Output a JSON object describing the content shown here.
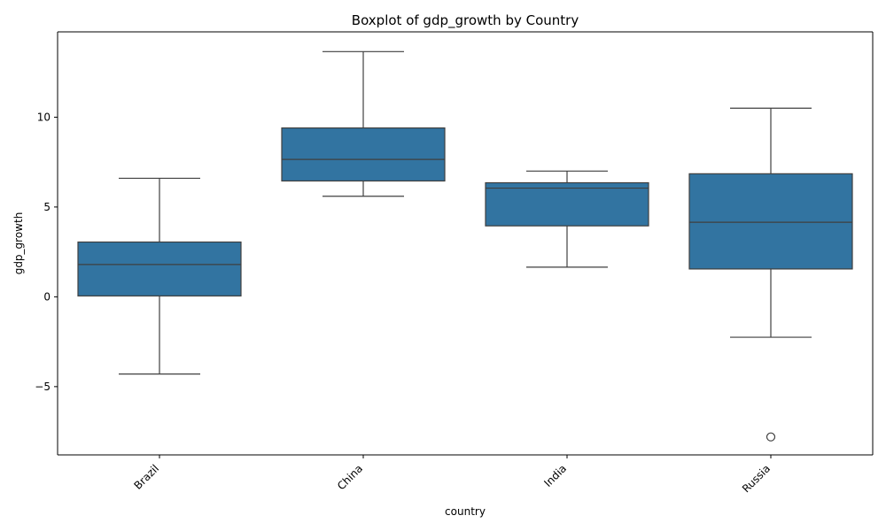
{
  "chart_data": {
    "type": "box",
    "title": "Boxplot of gdp_growth by Country",
    "xlabel": "country",
    "ylabel": "gdp_growth",
    "categories": [
      "Brazil",
      "China",
      "India",
      "Russia"
    ],
    "boxes": [
      {
        "category": "Brazil",
        "whisker_low": -4.3,
        "q1": 0.05,
        "median": 1.8,
        "q3": 3.05,
        "whisker_high": 6.6,
        "outliers": []
      },
      {
        "category": "China",
        "whisker_low": 5.6,
        "q1": 6.45,
        "median": 7.65,
        "q3": 9.4,
        "whisker_high": 13.65,
        "outliers": []
      },
      {
        "category": "India",
        "whisker_low": 1.65,
        "q1": 3.95,
        "median": 6.05,
        "q3": 6.35,
        "whisker_high": 7.0,
        "outliers": []
      },
      {
        "category": "Russia",
        "whisker_low": -2.25,
        "q1": 1.55,
        "median": 4.15,
        "q3": 6.85,
        "whisker_high": 10.5,
        "outliers": [
          -7.8
        ]
      }
    ],
    "ylim": [
      -8.8,
      14.75
    ],
    "yticks": [
      -5,
      0,
      5,
      10
    ],
    "ytick_labels": [
      "−5",
      "0",
      "5",
      "10"
    ],
    "grid": false,
    "colors": {
      "box_fill": "#3274a1",
      "box_line": "#3f3f3f",
      "axes": "#000000"
    }
  }
}
